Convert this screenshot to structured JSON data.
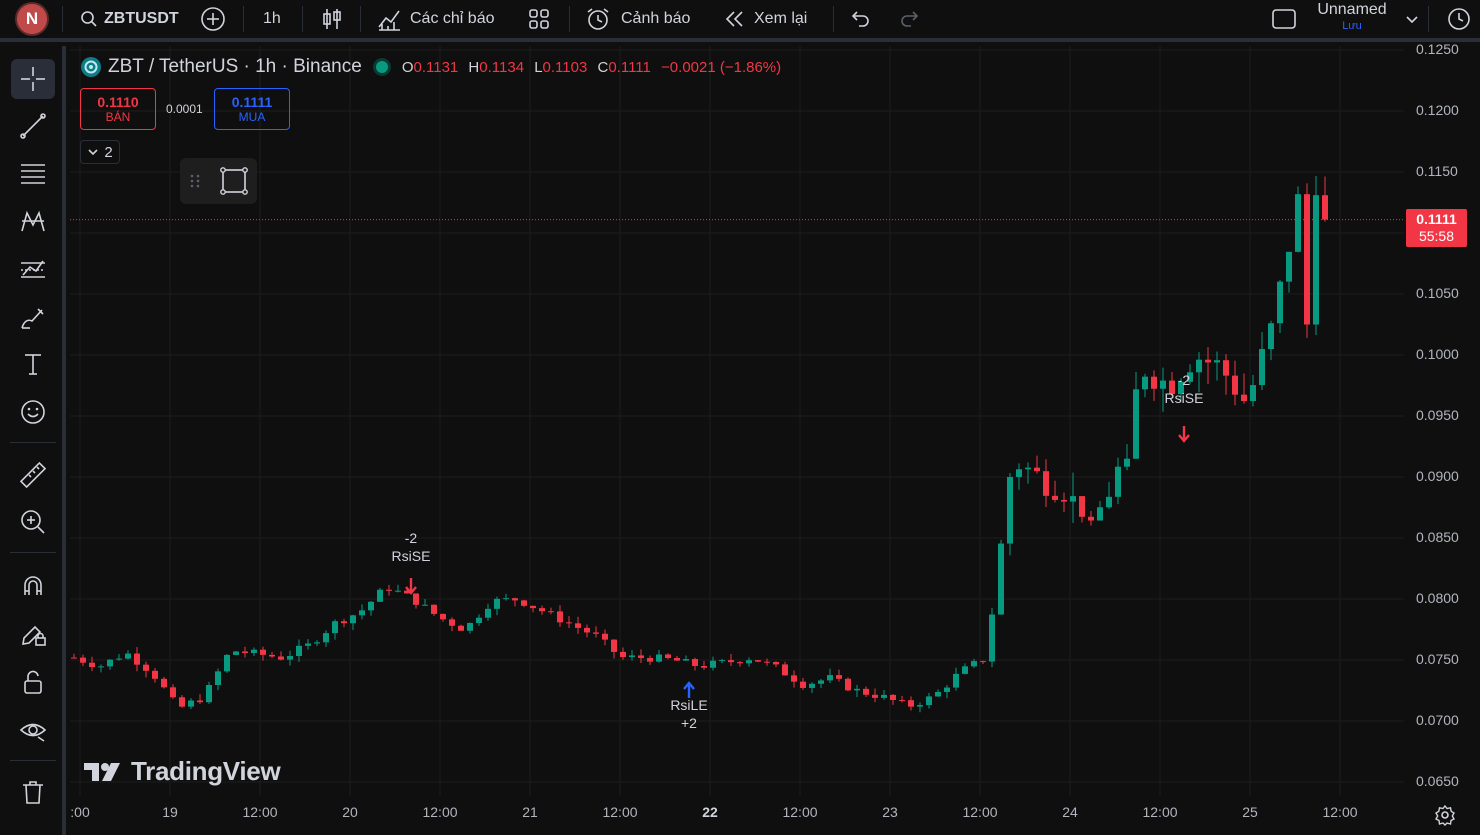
{
  "topbar": {
    "avatar_letter": "N",
    "symbol": "ZBTUSDT",
    "interval": "1h",
    "indicators_label": "Các chỉ báo",
    "alert_label": "Cảnh báo",
    "replay_label": "Xem lại",
    "layout_name": "Unnamed",
    "save_label": "Lưu"
  },
  "legend": {
    "title": "ZBT / TetherUS · 1h · Binance",
    "o_label": "O",
    "o_value": "0.1131",
    "h_label": "H",
    "h_value": "0.1134",
    "l_label": "L",
    "l_value": "0.1103",
    "c_label": "C",
    "c_value": "0.1111",
    "change": "−0.0021 (−1.86%)",
    "sell_price": "0.1110",
    "sell_label": "BÁN",
    "spread": "0.0001",
    "buy_price": "0.1111",
    "buy_label": "MUA",
    "collapse_count": "2"
  },
  "last_price": {
    "price": "0.1111",
    "countdown": "55:58",
    "value": 0.1111
  },
  "price_axis": [
    "0.1250",
    "0.1200",
    "0.1150",
    "0.1050",
    "0.1000",
    "0.0950",
    "0.0900",
    "0.0850",
    "0.0800",
    "0.0750",
    "0.0700",
    "0.0650"
  ],
  "time_axis": [
    {
      "label": ":00",
      "bold": false
    },
    {
      "label": "19",
      "bold": false
    },
    {
      "label": "12:00",
      "bold": false
    },
    {
      "label": "20",
      "bold": false
    },
    {
      "label": "12:00",
      "bold": false
    },
    {
      "label": "21",
      "bold": false
    },
    {
      "label": "12:00",
      "bold": false
    },
    {
      "label": "22",
      "bold": true
    },
    {
      "label": "12:00",
      "bold": false
    },
    {
      "label": "23",
      "bold": false
    },
    {
      "label": "12:00",
      "bold": false
    },
    {
      "label": "24",
      "bold": false
    },
    {
      "label": "12:00",
      "bold": false
    },
    {
      "label": "25",
      "bold": false
    },
    {
      "label": "12:00",
      "bold": false
    }
  ],
  "signals": [
    {
      "qty": "-2",
      "name": "RsiSE",
      "type": "short"
    },
    {
      "qty": "+2",
      "name": "RsiLE",
      "type": "long"
    },
    {
      "qty": "-2",
      "name": "RsiSE",
      "type": "short"
    }
  ],
  "brand": "TradingView",
  "colors": {
    "up": "#089981",
    "down": "#f23645",
    "buy": "#2962ff",
    "bg": "#0f0f0f",
    "grid": "#1c1c1c"
  },
  "chart_data": {
    "type": "candlestick",
    "symbol": "ZBT / TetherUS",
    "interval": "1h",
    "ylim": [
      0.0635,
      0.1265
    ],
    "series": [
      {
        "name": "ZBT / TetherUS",
        "trend_closes": [
          0.0752,
          0.0745,
          0.0756,
          0.074,
          0.071,
          0.072,
          0.0758,
          0.0755,
          0.0752,
          0.0762,
          0.078,
          0.079,
          0.081,
          0.08,
          0.0785,
          0.0775,
          0.0798,
          0.08,
          0.079,
          0.078,
          0.077,
          0.0752,
          0.0752,
          0.075,
          0.0745,
          0.0748,
          0.0752,
          0.0743,
          0.073,
          0.0735,
          0.0725,
          0.072,
          0.0712,
          0.072,
          0.074,
          0.0752,
          0.0915,
          0.09,
          0.089,
          0.086,
          0.09,
          0.099,
          0.0975,
          0.1,
          0.099,
          0.096,
          0.1025,
          0.113,
          0.1111
        ]
      }
    ]
  }
}
